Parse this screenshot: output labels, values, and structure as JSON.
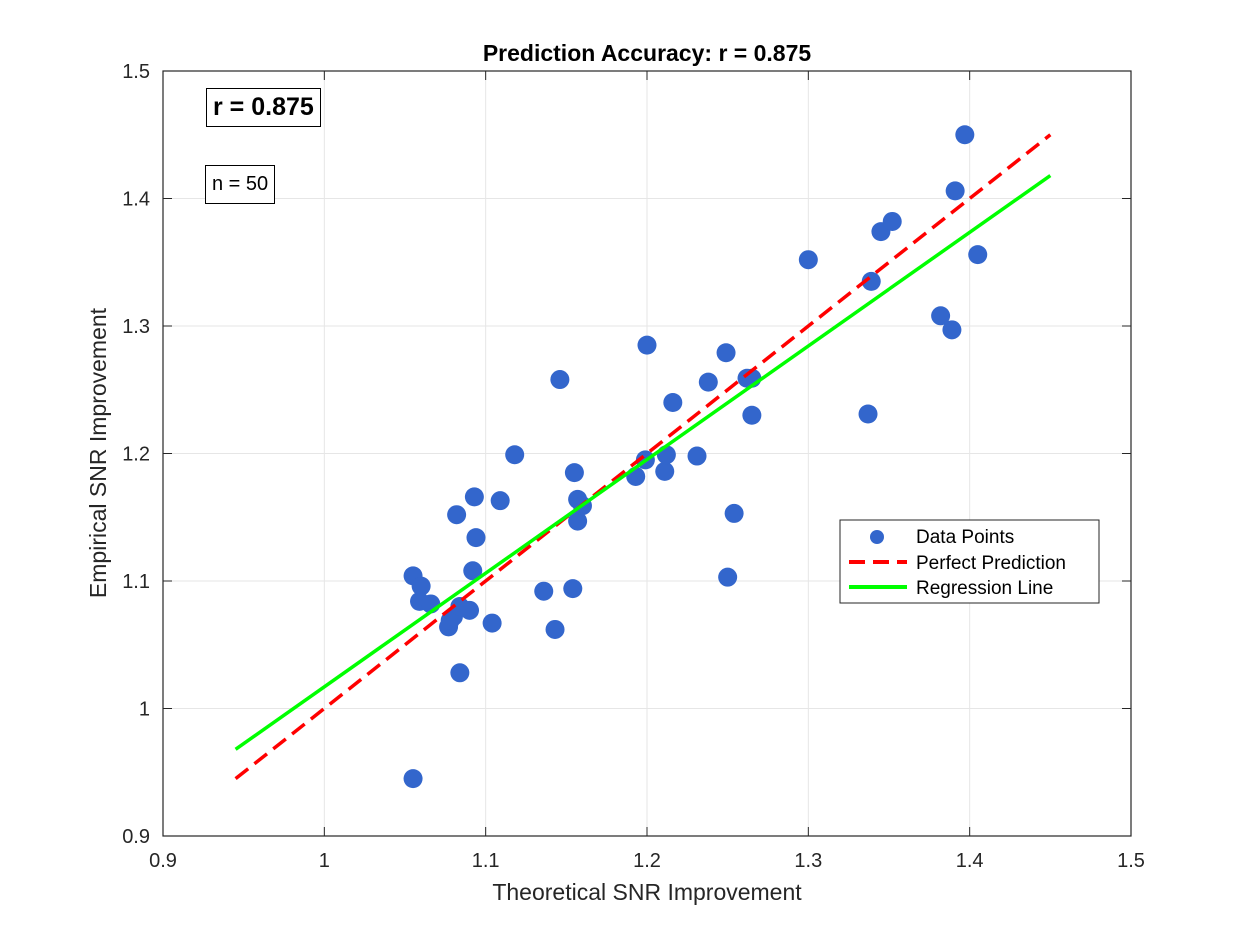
{
  "chart_data": {
    "type": "scatter",
    "title": "Prediction Accuracy: r = 0.875",
    "xlabel": "Theoretical SNR Improvement",
    "ylabel": "Empirical SNR Improvement",
    "xlim": [
      0.9,
      1.5
    ],
    "ylim": [
      0.9,
      1.5
    ],
    "xticks": [
      "0.9",
      "1",
      "1.1",
      "1.2",
      "1.3",
      "1.4",
      "1.5"
    ],
    "yticks": [
      "0.9",
      "1",
      "1.1",
      "1.2",
      "1.3",
      "1.4",
      "1.5"
    ],
    "grid": true,
    "legend_position": "right",
    "annotations": {
      "r": "r = 0.875",
      "n": "n = 50"
    },
    "series": [
      {
        "name": "Data Points",
        "kind": "scatter",
        "color": "#3366CC",
        "points": [
          [
            1.055,
            0.945
          ],
          [
            1.055,
            1.104
          ],
          [
            1.059,
            1.084
          ],
          [
            1.06,
            1.096
          ],
          [
            1.066,
            1.082
          ],
          [
            1.077,
            1.064
          ],
          [
            1.078,
            1.069
          ],
          [
            1.08,
            1.072
          ],
          [
            1.082,
            1.152
          ],
          [
            1.084,
            1.028
          ],
          [
            1.084,
            1.08
          ],
          [
            1.09,
            1.077
          ],
          [
            1.092,
            1.108
          ],
          [
            1.093,
            1.166
          ],
          [
            1.094,
            1.134
          ],
          [
            1.104,
            1.067
          ],
          [
            1.109,
            1.163
          ],
          [
            1.118,
            1.199
          ],
          [
            1.136,
            1.092
          ],
          [
            1.143,
            1.062
          ],
          [
            1.146,
            1.258
          ],
          [
            1.154,
            1.094
          ],
          [
            1.155,
            1.185
          ],
          [
            1.157,
            1.164
          ],
          [
            1.157,
            1.147
          ],
          [
            1.16,
            1.159
          ],
          [
            1.193,
            1.182
          ],
          [
            1.199,
            1.195
          ],
          [
            1.2,
            1.285
          ],
          [
            1.211,
            1.186
          ],
          [
            1.212,
            1.199
          ],
          [
            1.216,
            1.24
          ],
          [
            1.231,
            1.198
          ],
          [
            1.238,
            1.256
          ],
          [
            1.249,
            1.279
          ],
          [
            1.25,
            1.103
          ],
          [
            1.254,
            1.153
          ],
          [
            1.262,
            1.259
          ],
          [
            1.265,
            1.23
          ],
          [
            1.265,
            1.259
          ],
          [
            1.3,
            1.352
          ],
          [
            1.337,
            1.231
          ],
          [
            1.339,
            1.335
          ],
          [
            1.345,
            1.374
          ],
          [
            1.352,
            1.382
          ],
          [
            1.382,
            1.308
          ],
          [
            1.389,
            1.297
          ],
          [
            1.391,
            1.406
          ],
          [
            1.397,
            1.45
          ],
          [
            1.405,
            1.356
          ]
        ]
      },
      {
        "name": "Perfect Prediction",
        "kind": "line",
        "style": "dashed",
        "color": "#FF0000",
        "x": [
          0.945,
          1.45
        ],
        "y": [
          0.945,
          1.45
        ]
      },
      {
        "name": "Regression Line",
        "kind": "line",
        "style": "solid",
        "color": "#00FF00",
        "x": [
          0.945,
          1.45
        ],
        "y": [
          0.968,
          1.418
        ]
      }
    ]
  }
}
